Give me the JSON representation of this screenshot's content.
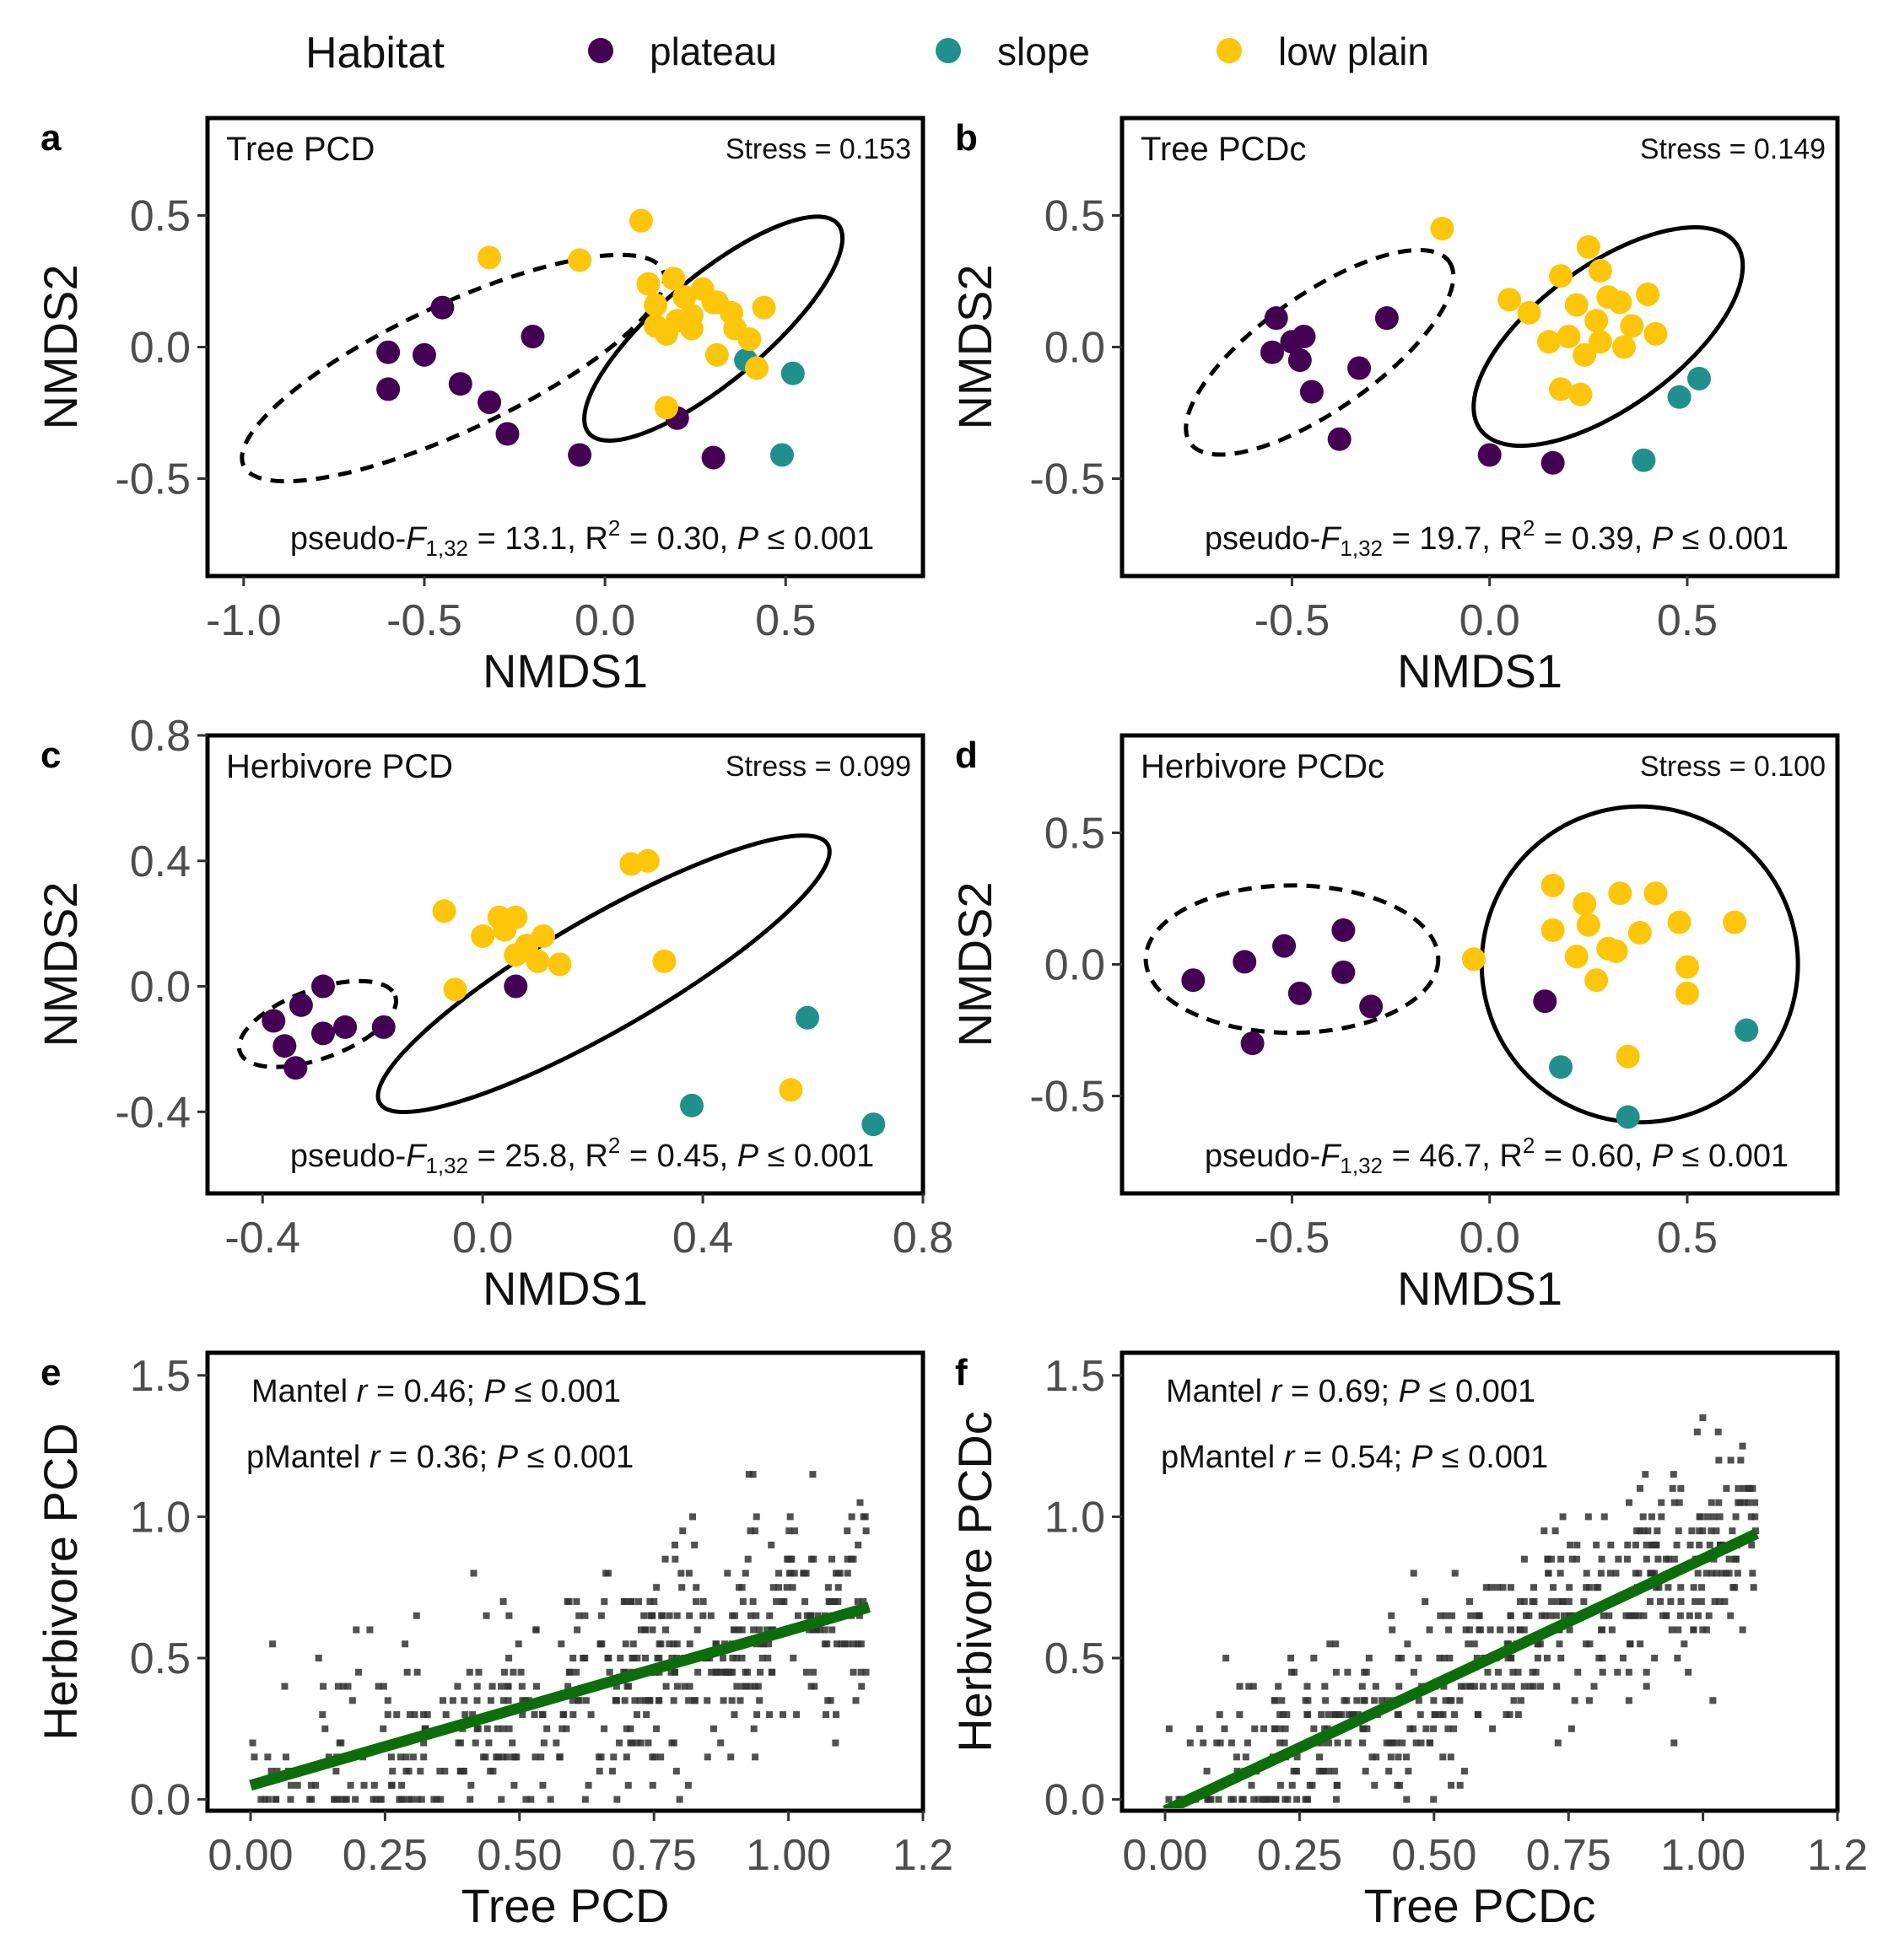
{
  "legend": {
    "title": "Habitat",
    "items": [
      {
        "label": "plateau",
        "color": "#440154"
      },
      {
        "label": "slope",
        "color": "#21908C"
      },
      {
        "label": "low plain",
        "color": "#FDC60A"
      }
    ]
  },
  "chart_data": [
    {
      "id": "a",
      "type": "scatter",
      "letter": "a",
      "title": "Tree PCD",
      "stress": "Stress = 0.153",
      "stat": {
        "prefix": "pseudo-",
        "F": "F",
        "sub": "1,32",
        "mid": " = 13.1, R",
        "sup": "2",
        "mid2": " = 0.30, ",
        "P": "P",
        "tail": " ≤  0.001"
      },
      "xlabel": "NMDS1",
      "ylabel": "NMDS2",
      "xlim": [
        -1.1,
        0.88
      ],
      "ylim": [
        -0.87,
        0.87
      ],
      "xticks": [
        {
          "v": -1.0,
          "label": "-1.0"
        },
        {
          "v": -0.5,
          "label": "-0.5"
        },
        {
          "v": 0.0,
          "label": "0.0"
        },
        {
          "v": 0.5,
          "label": "0.5"
        }
      ],
      "yticks": [
        {
          "v": -0.5,
          "label": "-0.5"
        },
        {
          "v": 0.0,
          "label": "0.0"
        },
        {
          "v": 0.5,
          "label": "0.5"
        }
      ],
      "ellipses": [
        {
          "habitat": "plateau",
          "style": "dashed",
          "cx": -0.42,
          "cy": -0.08,
          "rx": 0.64,
          "ry": 0.24,
          "angle_deg": -25
        },
        {
          "habitat": "low plain",
          "style": "solid",
          "cx": 0.3,
          "cy": 0.07,
          "rx": 0.45,
          "ry": 0.2,
          "angle_deg": -40
        }
      ],
      "groups": [
        {
          "habitat": "plateau",
          "x": [
            -0.6,
            -0.6,
            -0.5,
            -0.45,
            -0.4,
            -0.32,
            -0.27,
            -0.2,
            -0.07,
            0.2,
            0.3
          ],
          "y": [
            -0.02,
            -0.16,
            -0.03,
            0.15,
            -0.14,
            -0.21,
            -0.33,
            0.04,
            -0.41,
            -0.27,
            -0.42
          ]
        },
        {
          "habitat": "slope",
          "x": [
            0.39,
            0.52,
            0.49
          ],
          "y": [
            -0.05,
            -0.1,
            -0.41
          ]
        },
        {
          "habitat": "low plain",
          "x": [
            0.1,
            -0.32,
            -0.07,
            0.12,
            0.14,
            0.19,
            0.22,
            0.24,
            0.27,
            0.31,
            0.36,
            0.44,
            0.14,
            0.17,
            0.2,
            0.24,
            0.3,
            0.35,
            0.4,
            0.31,
            0.17,
            0.42
          ],
          "y": [
            0.48,
            0.34,
            0.33,
            0.24,
            0.16,
            0.26,
            0.19,
            0.12,
            0.22,
            0.17,
            0.07,
            0.15,
            0.08,
            0.05,
            0.1,
            0.07,
            0.17,
            0.13,
            0.03,
            -0.03,
            -0.23,
            -0.08
          ]
        }
      ]
    },
    {
      "id": "b",
      "type": "scatter",
      "letter": "b",
      "title": "Tree PCDc",
      "stress": "Stress = 0.149",
      "stat": {
        "prefix": "pseudo-",
        "F": "F",
        "sub": "1,32",
        "mid": " = 19.7, R",
        "sup": "2",
        "mid2": " = 0.39, ",
        "P": "P",
        "tail": " ≤  0.001"
      },
      "xlabel": "NMDS1",
      "ylabel": "NMDS2",
      "xlim": [
        -0.93,
        0.88
      ],
      "ylim": [
        -0.87,
        0.87
      ],
      "xticks": [
        {
          "v": -0.5,
          "label": "-0.5"
        },
        {
          "v": 0.0,
          "label": "0.0"
        },
        {
          "v": 0.5,
          "label": "0.5"
        }
      ],
      "yticks": [
        {
          "v": -0.5,
          "label": "-0.5"
        },
        {
          "v": 0.0,
          "label": "0.0"
        },
        {
          "v": 0.5,
          "label": "0.5"
        }
      ],
      "ellipses": [
        {
          "habitat": "plateau",
          "style": "dashed",
          "cx": -0.43,
          "cy": -0.02,
          "rx": 0.4,
          "ry": 0.22,
          "angle_deg": -35
        },
        {
          "habitat": "low plain",
          "style": "solid",
          "cx": 0.3,
          "cy": 0.04,
          "rx": 0.4,
          "ry": 0.27,
          "angle_deg": -36
        }
      ],
      "groups": [
        {
          "habitat": "plateau",
          "x": [
            -0.54,
            -0.5,
            -0.47,
            -0.55,
            -0.48,
            -0.45,
            -0.33,
            -0.26,
            -0.38,
            0.0,
            0.16
          ],
          "y": [
            0.11,
            0.02,
            0.04,
            -0.02,
            -0.05,
            -0.17,
            -0.08,
            0.11,
            -0.35,
            -0.41,
            -0.44
          ]
        },
        {
          "habitat": "slope",
          "x": [
            0.48,
            0.53,
            0.39
          ],
          "y": [
            -0.19,
            -0.12,
            -0.43
          ]
        },
        {
          "habitat": "low plain",
          "x": [
            -0.12,
            0.05,
            0.1,
            0.18,
            0.22,
            0.25,
            0.28,
            0.27,
            0.3,
            0.33,
            0.36,
            0.4,
            0.42,
            0.15,
            0.2,
            0.24,
            0.28,
            0.34,
            0.18,
            0.23
          ],
          "y": [
            0.45,
            0.18,
            0.13,
            0.27,
            0.16,
            0.38,
            0.29,
            0.1,
            0.19,
            0.17,
            0.08,
            0.2,
            0.05,
            0.02,
            0.04,
            -0.03,
            0.02,
            0.0,
            -0.16,
            -0.18
          ]
        }
      ]
    },
    {
      "id": "c",
      "type": "scatter",
      "letter": "c",
      "title": "Herbivore PCD",
      "stress": "Stress = 0.099",
      "stat": {
        "prefix": "pseudo-",
        "F": "F",
        "sub": "1,32",
        "mid": " = 25.8, R",
        "sup": "2",
        "mid2": " = 0.45, ",
        "P": "P",
        "tail": " ≤  0.001"
      },
      "xlabel": "NMDS1",
      "ylabel": "NMDS2",
      "xlim": [
        -0.5,
        0.8
      ],
      "ylim": [
        -0.66,
        0.8
      ],
      "xticks": [
        {
          "v": -0.4,
          "label": "-0.4"
        },
        {
          "v": 0.0,
          "label": "0.0"
        },
        {
          "v": 0.4,
          "label": "0.4"
        },
        {
          "v": 0.8,
          "label": "0.8"
        }
      ],
      "yticks": [
        {
          "v": -0.4,
          "label": "-0.4"
        },
        {
          "v": 0.0,
          "label": "0.0"
        },
        {
          "v": 0.4,
          "label": "0.4"
        },
        {
          "v": 0.8,
          "label": "0.8"
        }
      ],
      "ellipses": [
        {
          "habitat": "plateau",
          "style": "dashed",
          "cx": -0.3,
          "cy": -0.12,
          "rx": 0.15,
          "ry": 0.11,
          "angle_deg": -20
        },
        {
          "habitat": "low plain",
          "style": "solid",
          "cx": 0.22,
          "cy": 0.04,
          "rx": 0.47,
          "ry": 0.18,
          "angle_deg": -30
        }
      ],
      "groups": [
        {
          "habitat": "plateau",
          "x": [
            -0.38,
            -0.33,
            -0.29,
            -0.36,
            -0.29,
            -0.25,
            -0.18,
            -0.34,
            0.06
          ],
          "y": [
            -0.11,
            -0.06,
            0.0,
            -0.19,
            -0.15,
            -0.13,
            -0.13,
            -0.26,
            0.0
          ]
        },
        {
          "habitat": "slope",
          "x": [
            0.59,
            0.38,
            0.71
          ],
          "y": [
            -0.1,
            -0.38,
            -0.44
          ]
        },
        {
          "habitat": "low plain",
          "x": [
            0.27,
            0.3,
            -0.07,
            0.03,
            0.06,
            0.0,
            0.04,
            0.08,
            0.11,
            0.06,
            0.1,
            0.14,
            0.33,
            -0.05,
            0.56
          ],
          "y": [
            0.39,
            0.4,
            0.24,
            0.22,
            0.22,
            0.16,
            0.18,
            0.13,
            0.16,
            0.1,
            0.08,
            0.07,
            0.08,
            -0.01,
            -0.33
          ]
        }
      ]
    },
    {
      "id": "d",
      "type": "scatter",
      "letter": "d",
      "title": "Herbivore PCDc",
      "stress": "Stress = 0.100",
      "stat": {
        "prefix": "pseudo-",
        "F": "F",
        "sub": "1,32",
        "mid": " = 46.7, R",
        "sup": "2",
        "mid2": " = 0.60, ",
        "P": "P",
        "tail": " ≤  0.001"
      },
      "xlabel": "NMDS1",
      "ylabel": "NMDS2",
      "xlim": [
        -0.93,
        0.88
      ],
      "ylim": [
        -0.87,
        0.87
      ],
      "xticks": [
        {
          "v": -0.5,
          "label": "-0.5"
        },
        {
          "v": 0.0,
          "label": "0.0"
        },
        {
          "v": 0.5,
          "label": "0.5"
        }
      ],
      "yticks": [
        {
          "v": -0.5,
          "label": "-0.5"
        },
        {
          "v": 0.0,
          "label": "0.0"
        },
        {
          "v": 0.5,
          "label": "0.5"
        }
      ],
      "ellipses": [
        {
          "habitat": "plateau",
          "style": "dashed",
          "cx": -0.5,
          "cy": 0.02,
          "rx": 0.37,
          "ry": 0.28,
          "angle_deg": 0
        },
        {
          "habitat": "low plain",
          "style": "solid",
          "cx": 0.38,
          "cy": 0.0,
          "rx": 0.4,
          "ry": 0.6,
          "angle_deg": 5
        }
      ],
      "groups": [
        {
          "habitat": "plateau",
          "x": [
            -0.75,
            -0.62,
            -0.52,
            -0.37,
            -0.37,
            -0.48,
            -0.3,
            -0.6,
            0.14
          ],
          "y": [
            -0.06,
            0.01,
            0.07,
            0.13,
            -0.03,
            -0.11,
            -0.16,
            -0.3,
            -0.14
          ]
        },
        {
          "habitat": "slope",
          "x": [
            0.18,
            0.35,
            0.65
          ],
          "y": [
            -0.39,
            -0.58,
            -0.25
          ]
        },
        {
          "habitat": "low plain",
          "x": [
            0.16,
            0.24,
            0.33,
            0.42,
            0.16,
            0.25,
            0.3,
            0.38,
            0.48,
            0.62,
            0.22,
            0.32,
            0.5,
            0.27,
            0.5,
            -0.04,
            0.35
          ],
          "y": [
            0.3,
            0.23,
            0.27,
            0.27,
            0.13,
            0.15,
            0.06,
            0.12,
            0.16,
            0.16,
            0.03,
            0.05,
            -0.01,
            -0.06,
            -0.11,
            0.02,
            -0.35
          ]
        }
      ]
    },
    {
      "id": "e",
      "type": "scatter",
      "letter": "e",
      "stat_lines": [
        {
          "name": "Mantel ",
          "r": "r",
          "mid": " = 0.46; ",
          "P": "P",
          "tail": " ≤  0.001"
        },
        {
          "name": "pMantel ",
          "r": "r",
          "mid": " = 0.36; ",
          "P": "P",
          "tail": " ≤  0.001"
        }
      ],
      "xlabel": "Tree PCD",
      "ylabel": "Herbivore PCD",
      "xlim": [
        -0.08,
        1.25
      ],
      "ylim": [
        -0.04,
        1.58
      ],
      "xticks": [
        {
          "v": 0.0,
          "label": "0.00"
        },
        {
          "v": 0.25,
          "label": "0.25"
        },
        {
          "v": 0.5,
          "label": "0.50"
        },
        {
          "v": 0.75,
          "label": "0.75"
        },
        {
          "v": 1.0,
          "label": "1.00"
        },
        {
          "v": 1.25,
          "label": "1.2"
        }
      ],
      "yticks": [
        {
          "v": 0.0,
          "label": "0.0"
        },
        {
          "v": 0.5,
          "label": "0.5"
        },
        {
          "v": 1.0,
          "label": "1.0"
        },
        {
          "v": 1.5,
          "label": "1.5"
        }
      ],
      "regression": {
        "x0": 0.0,
        "y0": 0.05,
        "x1": 1.15,
        "y1": 0.68,
        "color": "#0B6E0B"
      },
      "points": {
        "n": 520,
        "x_min": 0.0,
        "x_max": 1.15,
        "slope": 0.55,
        "intercept": 0.05,
        "noise_sd": 0.2,
        "y_min": 0.0,
        "y_max": 1.15,
        "seed": 7,
        "color": "#333333"
      }
    },
    {
      "id": "f",
      "type": "scatter",
      "letter": "f",
      "stat_lines": [
        {
          "name": "Mantel ",
          "r": "r",
          "mid": " = 0.69; ",
          "P": "P",
          "tail": " ≤  0.001"
        },
        {
          "name": "pMantel ",
          "r": "r",
          "mid": " = 0.54; ",
          "P": "P",
          "tail": " ≤  0.001"
        }
      ],
      "xlabel": "Tree PCDc",
      "ylabel": "Herbivore PCDc",
      "xlim": [
        -0.08,
        1.25
      ],
      "ylim": [
        -0.04,
        1.58
      ],
      "xticks": [
        {
          "v": 0.0,
          "label": "0.00"
        },
        {
          "v": 0.25,
          "label": "0.25"
        },
        {
          "v": 0.5,
          "label": "0.50"
        },
        {
          "v": 0.75,
          "label": "0.75"
        },
        {
          "v": 1.0,
          "label": "1.00"
        },
        {
          "v": 1.25,
          "label": "1.2"
        }
      ],
      "yticks": [
        {
          "v": 0.0,
          "label": "0.0"
        },
        {
          "v": 0.5,
          "label": "0.5"
        },
        {
          "v": 1.0,
          "label": "1.0"
        },
        {
          "v": 1.5,
          "label": "1.5"
        }
      ],
      "regression": {
        "x0": 0.0,
        "y0": -0.04,
        "x1": 1.1,
        "y1": 0.94,
        "color": "#0B6E0B"
      },
      "points": {
        "n": 520,
        "x_min": 0.0,
        "x_max": 1.1,
        "slope": 0.9,
        "intercept": -0.04,
        "noise_sd": 0.17,
        "y_min": 0.0,
        "y_max": 1.4,
        "seed": 13,
        "color": "#333333"
      }
    }
  ]
}
